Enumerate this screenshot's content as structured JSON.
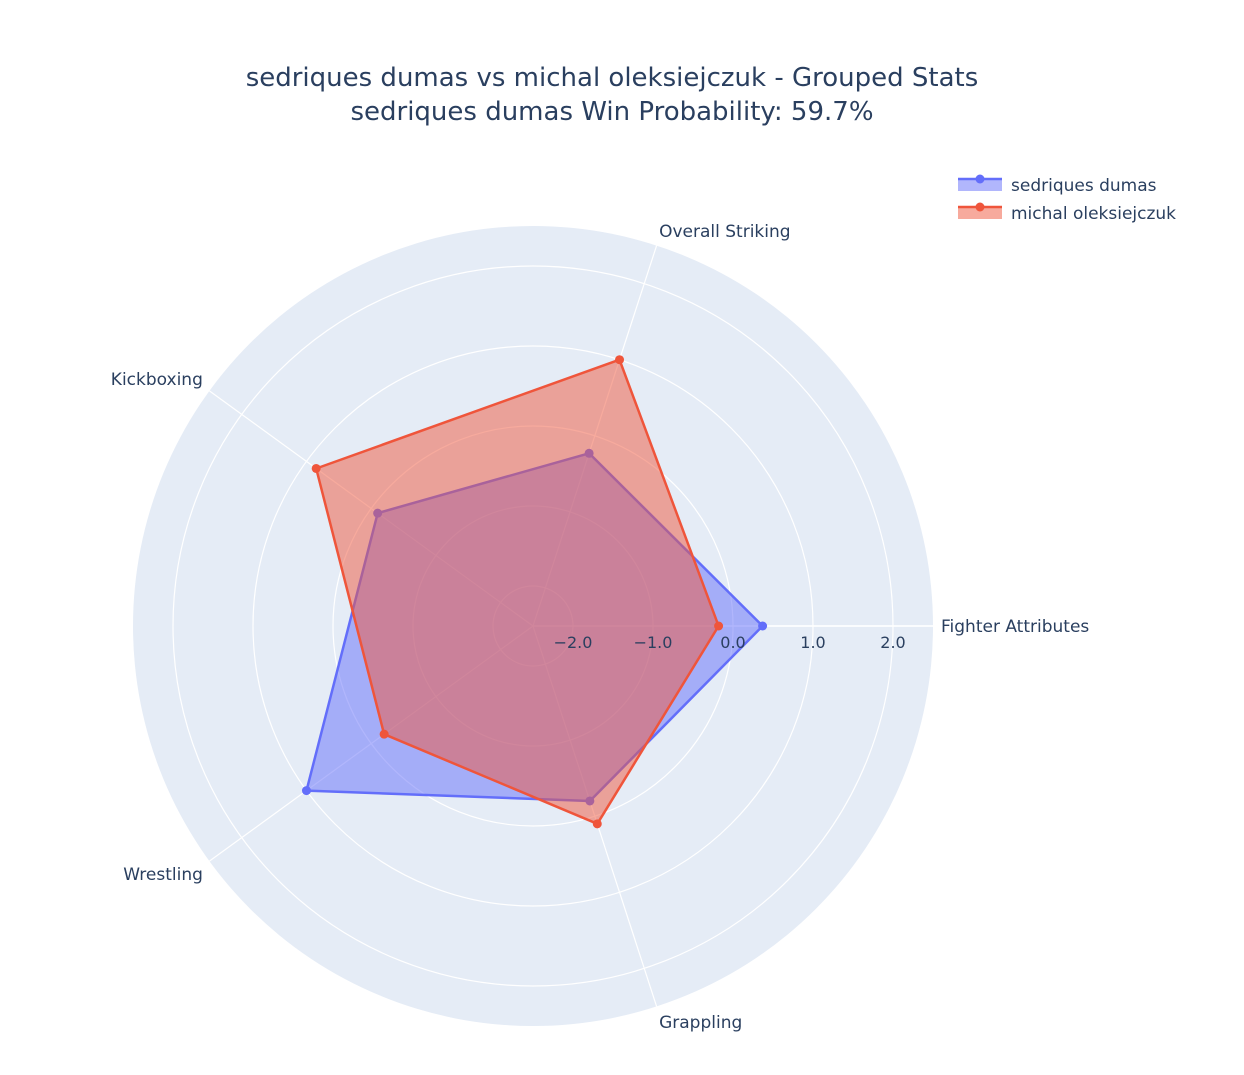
{
  "chart_data": {
    "type": "radar",
    "title": "sedriques dumas vs michal oleksiejczuk - Grouped Stats",
    "subtitle": "sedriques dumas Win Probability: 59.7%",
    "axes": [
      "Fighter Attributes",
      "Overall Striking",
      "Kickboxing",
      "Wrestling",
      "Grappling"
    ],
    "radial_range": [
      -2.5,
      2.5
    ],
    "radial_ticks": [
      -2.0,
      -1.0,
      0.0,
      1.0,
      2.0
    ],
    "radial_tick_labels": [
      "−2.0",
      "−1.0",
      "0.0",
      "1.0",
      "2.0"
    ],
    "grid": true,
    "legend_position": "top-right",
    "series": [
      {
        "name": "sedriques dumas",
        "color": "#636efa",
        "values": [
          0.37,
          -0.23,
          -0.1,
          1.0,
          -0.2
        ]
      },
      {
        "name": "michal oleksiejczuk",
        "color": "#ef553b",
        "values": [
          -0.18,
          1.0,
          0.85,
          -0.2,
          0.1
        ]
      }
    ]
  }
}
